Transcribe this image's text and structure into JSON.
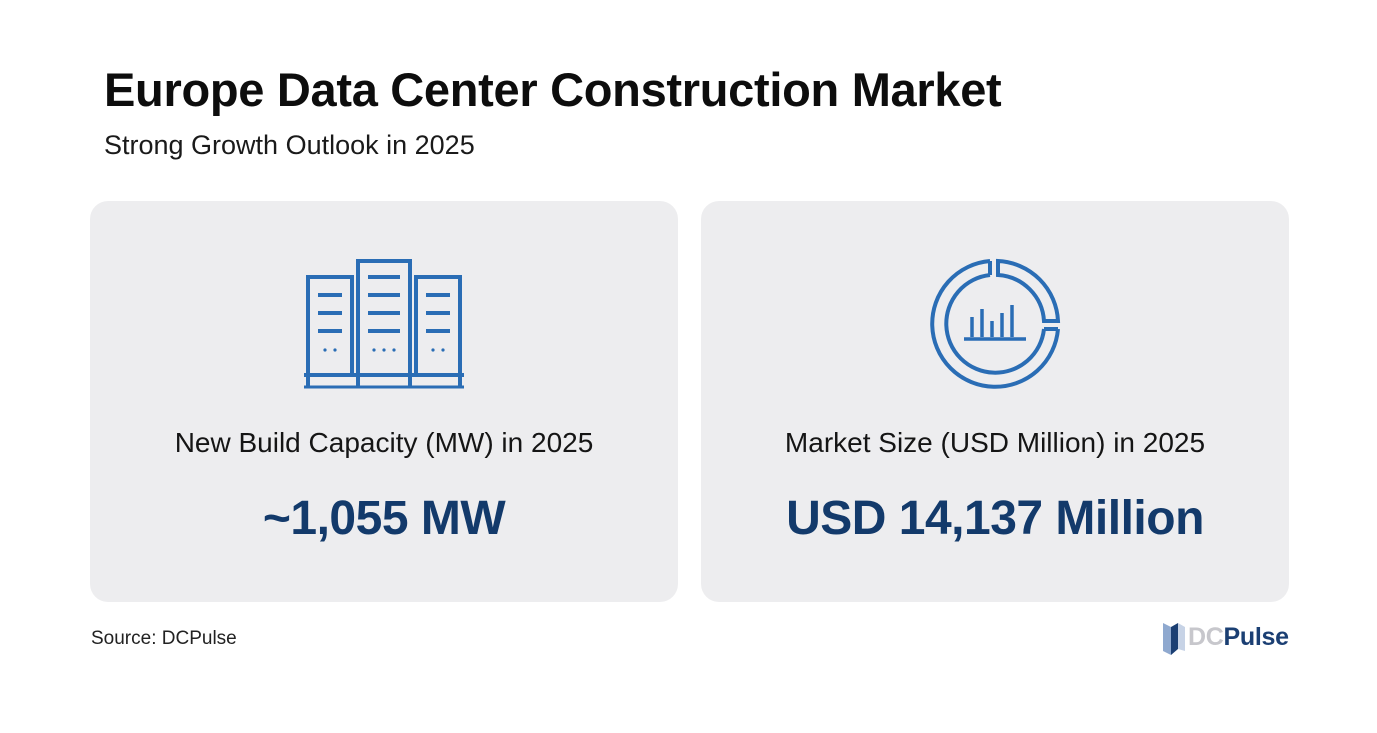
{
  "header": {
    "title": "Europe Data Center Construction Market",
    "subtitle": "Strong Growth Outlook in 2025"
  },
  "cards": [
    {
      "icon": "server-racks-icon",
      "label": "New Build Capacity (MW) in 2025",
      "value": "~1,055 MW"
    },
    {
      "icon": "donut-bar-chart-icon",
      "label": "Market Size (USD Million) in 2025",
      "value": "USD 14,137 Million"
    }
  ],
  "footer": {
    "source": "Source: DCPulse",
    "brand": {
      "logo_icon": "dcpulse-logo-icon",
      "part1": "DC",
      "part2": "Pulse"
    }
  },
  "colors": {
    "icon_blue": "#2a6db5",
    "value_navy": "#133a6b",
    "card_bg": "#ededef",
    "brand_gray": "#c7c7cc",
    "brand_navy": "#1b3f73"
  }
}
